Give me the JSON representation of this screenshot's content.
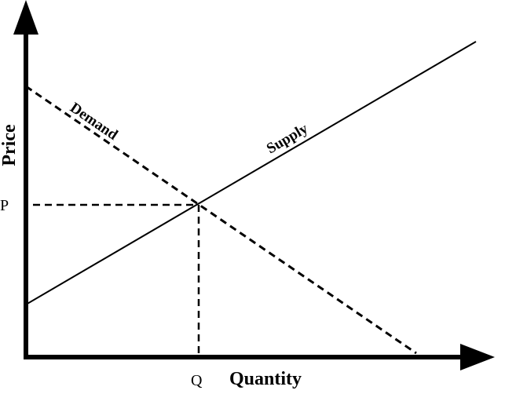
{
  "diagram": {
    "axes": {
      "x_title": "Quantity",
      "y_title": "Price"
    },
    "curves": {
      "supply_label": "Supply",
      "demand_label": "Demand"
    },
    "equilibrium": {
      "price_label": "P",
      "quantity_label": "Q"
    }
  }
}
